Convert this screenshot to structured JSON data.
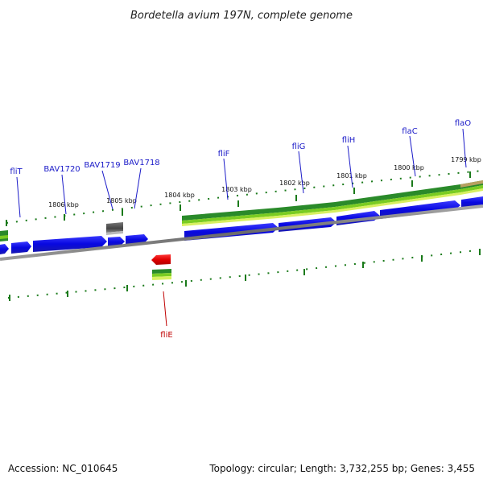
{
  "title": "Bordetella avium 197N, complete genome",
  "footer": {
    "accession": "Accession: NC_010645",
    "summary": "Topology: circular; Length: 3,732,255 bp; Genes: 3,455"
  },
  "kbp_ticks": [
    "1806 kbp",
    "1805 kbp",
    "1804 kbp",
    "1803 kbp",
    "1802 kbp",
    "1801 kbp",
    "1800 kbp",
    "1799 kbp"
  ],
  "gene_labels": [
    "fliT",
    "BAV1720",
    "BAV1719",
    "BAV1718",
    "fliF",
    "fliG",
    "fliH",
    "flaC",
    "flaO"
  ],
  "red_gene_label": "fliE",
  "colors": {
    "cds_blue": "#0a0ae6",
    "rna_gray": "#555555",
    "highlight_red": "#dd0000",
    "label_blue": "#1a1ac8",
    "tick_green": "#1a7a1a",
    "band_dark": "#2a8a2a",
    "band_mid": "#7acc22",
    "band_light": "#d8f060",
    "backbone": "#808080"
  }
}
